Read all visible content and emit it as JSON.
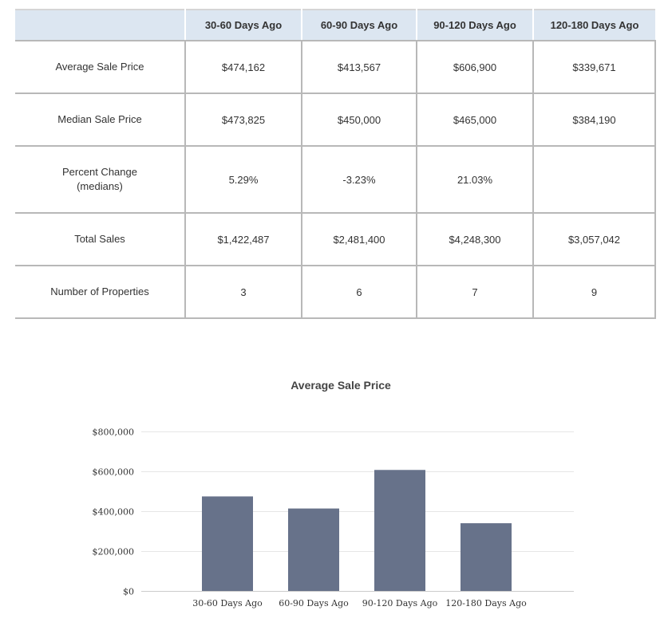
{
  "table": {
    "columns": [
      "",
      "30-60 Days Ago",
      "60-90 Days Ago",
      "90-120 Days Ago",
      "120-180 Days Ago"
    ],
    "rows": [
      {
        "label": "Average Sale Price",
        "values": [
          "$474,162",
          "$413,567",
          "$606,900",
          "$339,671"
        ]
      },
      {
        "label": "Median Sale Price",
        "values": [
          "$473,825",
          "$450,000",
          "$465,000",
          "$384,190"
        ]
      },
      {
        "label": "Percent Change\n(medians)",
        "values": [
          "5.29%",
          "-3.23%",
          "21.03%",
          ""
        ]
      },
      {
        "label": "Total Sales",
        "values": [
          "$1,422,487",
          "$2,481,400",
          "$4,248,300",
          "$3,057,042"
        ]
      },
      {
        "label": "Number of Properties",
        "values": [
          "3",
          "6",
          "7",
          "9"
        ]
      }
    ]
  },
  "chart_data": {
    "type": "bar",
    "title": "Average Sale Price",
    "categories": [
      "30-60 Days Ago",
      "60-90 Days Ago",
      "90-120 Days Ago",
      "120-180 Days Ago"
    ],
    "values": [
      474162,
      413567,
      606900,
      339671
    ],
    "ylim": [
      0,
      800000
    ],
    "yticks": [
      0,
      200000,
      400000,
      600000,
      800000
    ],
    "ytick_labels": [
      "$0",
      "$200,000",
      "$400,000",
      "$600,000",
      "$800,000"
    ],
    "xlabel": "",
    "ylabel": "",
    "grid": true,
    "colors": {
      "bar": "#67728a",
      "grid": "#e6e6e6",
      "axis": "#cccccc"
    }
  }
}
